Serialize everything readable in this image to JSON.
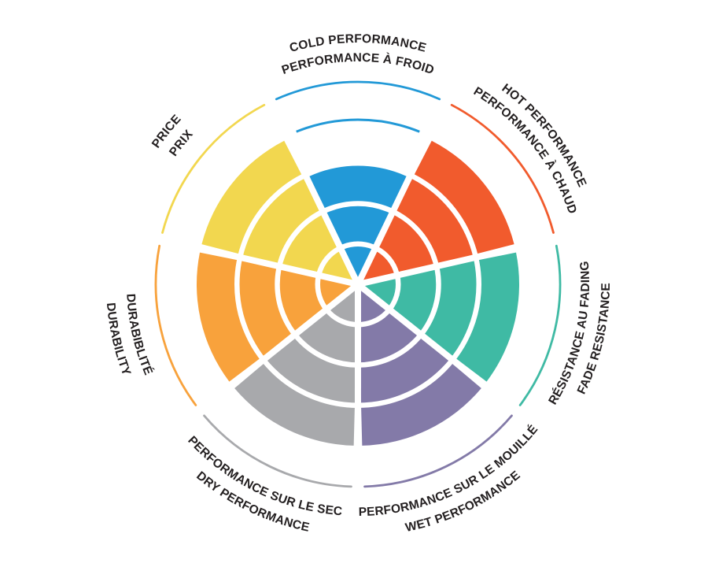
{
  "page": {
    "background": "#ffffff",
    "description": "Tire rating wheel infographic with seven colored sectors and bilingual labels"
  },
  "chart_data": {
    "type": "bar",
    "coordinate_system": "polar",
    "variant": "rating wheel (coxcomb): 7 equal sectors, each filled from center to its score; white ring grid",
    "title": "",
    "scale": {
      "min": 0,
      "max": 4,
      "ring_count": 4
    },
    "grid": "white concentric ring lines and white radial spokes over the colored sectors",
    "legend_position": "curved bilingual labels around the outside of the wheel",
    "sectors": [
      {
        "id": "cold",
        "label_en": "COLD PERFORMANCE",
        "label_fr": "PERFORMANCE À FROID",
        "value": 3,
        "max": 4,
        "color": "#2299d7",
        "mid_angle_deg": -90,
        "max_ring_indicator_arc": true
      },
      {
        "id": "hot",
        "label_en": "HOT PERFORMANCE",
        "label_fr": "PERFORMANCE À CHAUD",
        "value": 4,
        "max": 4,
        "color": "#f15b2d",
        "mid_angle_deg": -38.57,
        "max_ring_indicator_arc": false
      },
      {
        "id": "fade",
        "label_en": "FADE RESISTANCE",
        "label_fr": "RÉSISTANCE AU FADING",
        "value": 4,
        "max": 4,
        "color": "#3fbaa4",
        "mid_angle_deg": 12.86,
        "max_ring_indicator_arc": false
      },
      {
        "id": "wet",
        "label_en": "WET PERFORMANCE",
        "label_fr": "PERFORMANCE SUR LE MOUILLÉ",
        "value": 4,
        "max": 4,
        "color": "#837aa8",
        "mid_angle_deg": 64.29,
        "max_ring_indicator_arc": false
      },
      {
        "id": "dry",
        "label_en": "DRY PERFORMANCE",
        "label_fr": "PERFORMANCE SUR LE SEC",
        "value": 4,
        "max": 4,
        "color": "#a8a9ac",
        "mid_angle_deg": 115.71,
        "max_ring_indicator_arc": false
      },
      {
        "id": "durability",
        "label_en": "DURABILITY",
        "label_fr": "DURABIBLITÉ",
        "value": 4,
        "max": 4,
        "color": "#f8a23c",
        "mid_angle_deg": 167.14,
        "max_ring_indicator_arc": false
      },
      {
        "id": "price",
        "label_en": "PRICE",
        "label_fr": "PRIX",
        "value": 4,
        "max": 4,
        "color": "#f2d74f",
        "mid_angle_deg": 218.57,
        "max_ring_indicator_arc": false
      }
    ],
    "style": {
      "label_color": "#231f20",
      "grid_color": "#ffffff",
      "outer_decoration": "thin arc outside each sector drawn in the sector color",
      "max_indicator": "sectors below max score show a thin arc of their color at the outermost ring radius"
    }
  }
}
